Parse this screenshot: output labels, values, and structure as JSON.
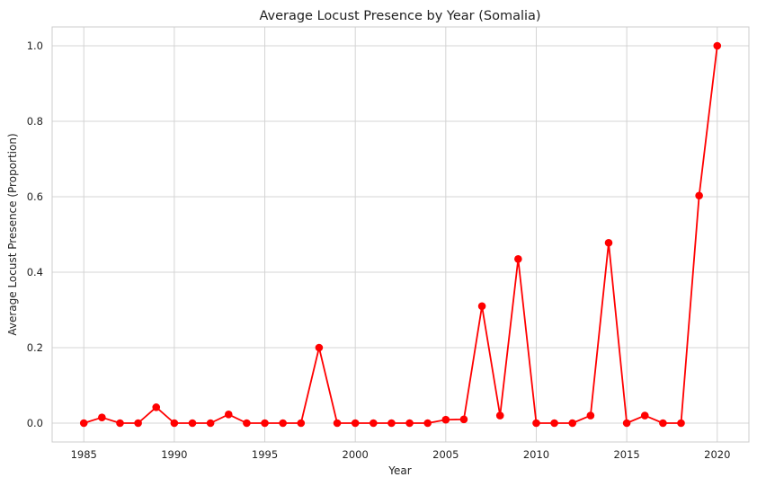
{
  "chart_data": {
    "type": "line",
    "title": "Average Locust Presence by Year (Somalia)",
    "xlabel": "Year",
    "ylabel": "Average Locust Presence (Proportion)",
    "xlim": [
      1983.25,
      2021.75
    ],
    "ylim": [
      -0.05,
      1.05
    ],
    "xticks": [
      1985,
      1990,
      1995,
      2000,
      2005,
      2010,
      2015,
      2020
    ],
    "yticks": [
      0.0,
      0.2,
      0.4,
      0.6,
      0.8,
      1.0
    ],
    "xtick_labels": [
      "1985",
      "1990",
      "1995",
      "2000",
      "2005",
      "2010",
      "2015",
      "2020"
    ],
    "ytick_labels": [
      "0.0",
      "0.2",
      "0.4",
      "0.6",
      "0.8",
      "1.0"
    ],
    "grid": true,
    "series": [
      {
        "color": "#ff0000",
        "marker": "circle",
        "x": [
          1985,
          1986,
          1987,
          1988,
          1989,
          1990,
          1991,
          1992,
          1993,
          1994,
          1995,
          1996,
          1997,
          1998,
          1999,
          2000,
          2001,
          2002,
          2003,
          2004,
          2005,
          2006,
          2007,
          2008,
          2009,
          2010,
          2011,
          2012,
          2013,
          2014,
          2015,
          2016,
          2017,
          2018,
          2019,
          2020
        ],
        "y": [
          0.0,
          0.015,
          0.0,
          0.0,
          0.042,
          0.0,
          0.0,
          0.0,
          0.023,
          0.0,
          0.0,
          0.0,
          0.0,
          0.2,
          0.0,
          0.0,
          0.0,
          0.0,
          0.0,
          0.0,
          0.009,
          0.01,
          0.31,
          0.02,
          0.435,
          0.0,
          0.0,
          0.0,
          0.02,
          0.478,
          0.0,
          0.02,
          0.0,
          0.0,
          0.603,
          1.0
        ]
      }
    ]
  }
}
